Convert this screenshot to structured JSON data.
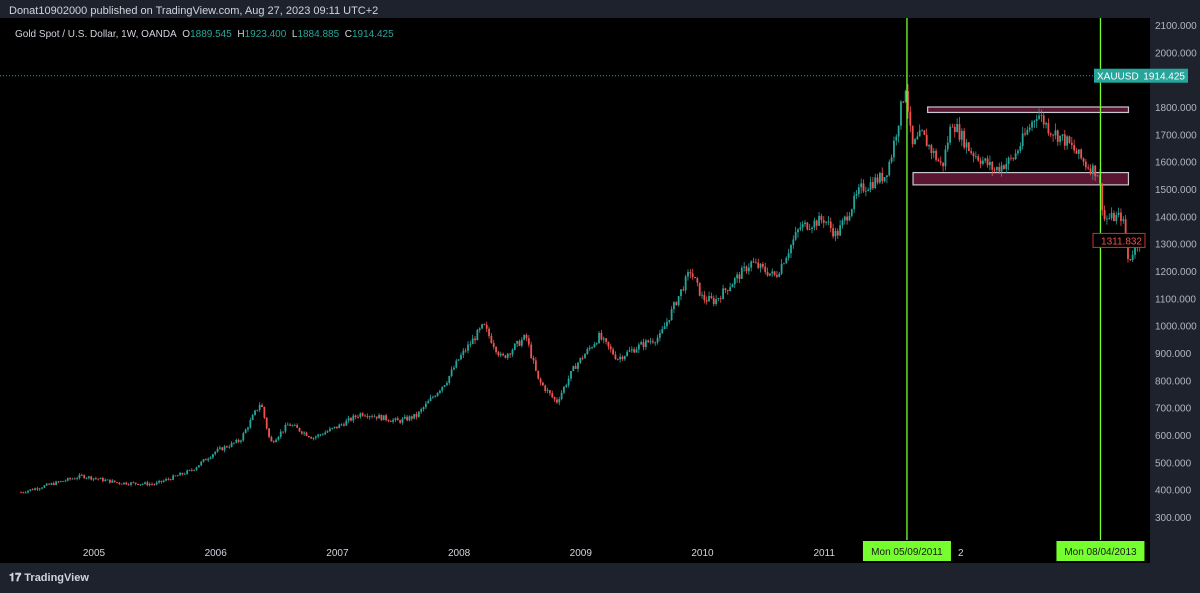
{
  "header": {
    "published": "Donat10902000 published on TradingView.com, Aug 27, 2023 09:11 UTC+2"
  },
  "legend": {
    "symbol": "Gold Spot / U.S. Dollar, 1W, OANDA",
    "o_label": "O",
    "o": "1889.545",
    "h_label": "H",
    "h": "1923.400",
    "l_label": "L",
    "l": "1884.885",
    "c_label": "C",
    "c": "1914.425"
  },
  "footer": {
    "brand": "TradingView"
  },
  "colors": {
    "up": "#26a69a",
    "down": "#ef5350",
    "marker": "#76ff2e",
    "zone": "#5a1530"
  },
  "chart_data": {
    "type": "candlestick",
    "title": "Gold Spot / U.S. Dollar, 1W, OANDA",
    "ylim": [
      200,
      2100
    ],
    "yticks": [
      "2100.000",
      "2000.000",
      "1800.000",
      "1700.000",
      "1600.000",
      "1500.000",
      "1400.000",
      "1300.000",
      "1200.000",
      "1100.000",
      "1000.000",
      "900.000",
      "800.000",
      "700.000",
      "600.000",
      "500.000",
      "400.000",
      "300.000"
    ],
    "xticks": [
      "2005",
      "2006",
      "2007",
      "2008",
      "2009",
      "2010",
      "2011",
      "2"
    ],
    "xlim": [
      2004.38,
      2013.95
    ],
    "price_path": [
      [
        2004.4,
        390
      ],
      [
        2004.9,
        450
      ],
      [
        2005.2,
        425
      ],
      [
        2005.5,
        420
      ],
      [
        2005.8,
        470
      ],
      [
        2006.0,
        540
      ],
      [
        2006.2,
        580
      ],
      [
        2006.37,
        720
      ],
      [
        2006.45,
        570
      ],
      [
        2006.6,
        640
      ],
      [
        2006.8,
        590
      ],
      [
        2007.0,
        630
      ],
      [
        2007.2,
        680
      ],
      [
        2007.5,
        650
      ],
      [
        2007.65,
        670
      ],
      [
        2007.9,
        800
      ],
      [
        2008.0,
        880
      ],
      [
        2008.2,
        1000
      ],
      [
        2008.35,
        880
      ],
      [
        2008.55,
        960
      ],
      [
        2008.65,
        800
      ],
      [
        2008.8,
        720
      ],
      [
        2008.95,
        850
      ],
      [
        2009.15,
        960
      ],
      [
        2009.3,
        880
      ],
      [
        2009.5,
        930
      ],
      [
        2009.65,
        960
      ],
      [
        2009.9,
        1200
      ],
      [
        2010.0,
        1100
      ],
      [
        2010.1,
        1090
      ],
      [
        2010.4,
        1230
      ],
      [
        2010.6,
        1180
      ],
      [
        2010.8,
        1360
      ],
      [
        2011.0,
        1390
      ],
      [
        2011.1,
        1330
      ],
      [
        2011.3,
        1500
      ],
      [
        2011.5,
        1550
      ],
      [
        2011.55,
        1620
      ],
      [
        2011.67,
        1880
      ],
      [
        2011.72,
        1650
      ],
      [
        2011.8,
        1700
      ],
      [
        2011.97,
        1580
      ],
      [
        2012.05,
        1750
      ],
      [
        2012.2,
        1640
      ],
      [
        2012.4,
        1570
      ],
      [
        2012.55,
        1610
      ],
      [
        2012.75,
        1780
      ],
      [
        2012.85,
        1720
      ],
      [
        2013.0,
        1670
      ],
      [
        2013.15,
        1590
      ],
      [
        2013.25,
        1560
      ],
      [
        2013.3,
        1390
      ],
      [
        2013.45,
        1400
      ],
      [
        2013.5,
        1230
      ],
      [
        2013.55,
        1290
      ],
      [
        2013.6,
        1312
      ]
    ],
    "current_price": {
      "symbol": "XAUUSD",
      "value": "1914.425",
      "y": 1914.425
    },
    "last_price": {
      "value": "1311.832",
      "y": 1311.832
    },
    "vertical_markers": [
      {
        "label": "Mon 05/09/2011",
        "x": 2011.68
      },
      {
        "label": "Mon 08/04/2013",
        "x": 2013.27
      }
    ],
    "zones": [
      {
        "x": [
          2011.85,
          2013.5
        ],
        "y": [
          1780,
          1800
        ]
      },
      {
        "x": [
          2011.73,
          2013.5
        ],
        "y": [
          1515,
          1560
        ]
      }
    ]
  }
}
